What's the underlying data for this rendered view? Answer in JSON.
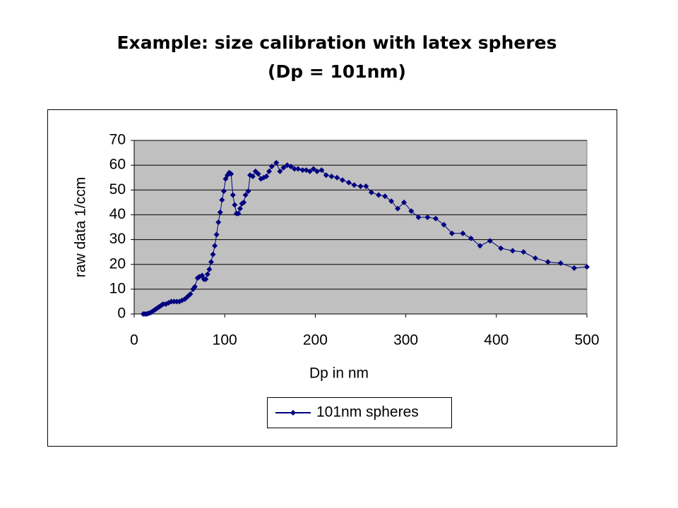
{
  "chart_data": {
    "type": "line",
    "title": "Example: size calibration with latex spheres",
    "subtitle": "(Dp = 101nm)",
    "xlabel": "Dp in nm",
    "ylabel": "raw data 1/ccm",
    "x": [
      10,
      12,
      14,
      16,
      18,
      20,
      22,
      24,
      26,
      28,
      30,
      32,
      35,
      38,
      41,
      44,
      47,
      50,
      53,
      56,
      59,
      62,
      65,
      67,
      70,
      72,
      75,
      77,
      79,
      81,
      83,
      85,
      87,
      89,
      91,
      93,
      95,
      97,
      99,
      101,
      103,
      105,
      107,
      109,
      111,
      113,
      115,
      117,
      119,
      121,
      123,
      126,
      128,
      131,
      134,
      137,
      140,
      143,
      146,
      149,
      152,
      157,
      161,
      165,
      169,
      173,
      177,
      181,
      186,
      190,
      194,
      198,
      202,
      207,
      212,
      218,
      224,
      230,
      237,
      243,
      250,
      256,
      262,
      270,
      277,
      284,
      291,
      298,
      306,
      314,
      324,
      333,
      342,
      351,
      363,
      372,
      382,
      393,
      405,
      418,
      430,
      443,
      457,
      471,
      486,
      500
    ],
    "series": [
      {
        "name": "101nm spheres",
        "color": "#000080",
        "values": [
          0,
          0,
          0,
          0.3,
          0.5,
          1,
          1.5,
          2,
          2.5,
          3,
          3.5,
          4,
          4,
          4.5,
          5,
          5,
          5,
          5,
          5.5,
          6,
          7,
          8,
          10,
          11,
          14.5,
          15,
          15.5,
          14,
          14,
          16,
          18,
          21,
          24,
          27.5,
          32,
          37,
          41,
          46,
          49.5,
          54.5,
          56,
          57,
          56.5,
          48,
          44,
          40.5,
          40.5,
          42.5,
          44.5,
          45,
          48,
          49.5,
          56,
          55.5,
          57.5,
          56.5,
          54.5,
          55,
          55.5,
          57.5,
          59.5,
          61,
          57.5,
          59,
          60,
          59.5,
          58.5,
          58.5,
          58,
          58,
          57.5,
          58.5,
          57.5,
          58,
          56,
          55.5,
          55,
          54,
          53,
          52,
          51.5,
          51.5,
          49,
          48,
          47.5,
          45.5,
          42.5,
          45,
          41.5,
          39,
          39,
          38.5,
          36,
          32.5,
          32.5,
          30.5,
          27.5,
          29.5,
          26.5,
          25.5,
          25,
          22.5,
          21,
          20.5,
          18.5,
          19
        ]
      }
    ],
    "xlim": [
      0,
      500
    ],
    "xticks": [
      0,
      100,
      200,
      300,
      400,
      500
    ],
    "ylim": [
      0,
      70
    ],
    "yticks": [
      0,
      10,
      20,
      30,
      40,
      50,
      60,
      70
    ],
    "grid": true,
    "plot_background": "#c0c0c0",
    "legend": "bottom"
  }
}
